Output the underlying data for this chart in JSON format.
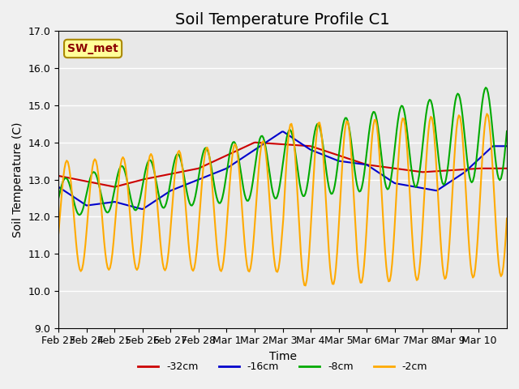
{
  "title": "Soil Temperature Profile C1",
  "xlabel": "Time",
  "ylabel": "Soil Temperature (C)",
  "ylim": [
    9.0,
    17.0
  ],
  "yticks": [
    9.0,
    10.0,
    11.0,
    12.0,
    13.0,
    14.0,
    15.0,
    16.0,
    17.0
  ],
  "xtick_labels": [
    "Feb 23",
    "Feb 24",
    "Feb 25",
    "Feb 26",
    "Feb 27",
    "Feb 28",
    "Mar 1",
    "Mar 2",
    "Mar 3",
    "Mar 4",
    "Mar 5",
    "Mar 6",
    "Mar 7",
    "Mar 8",
    "Mar 9",
    "Mar 10"
  ],
  "legend_labels": [
    "-32cm",
    "-16cm",
    "-8cm",
    "-2cm"
  ],
  "legend_colors": [
    "#cc0000",
    "#0000cc",
    "#00aa00",
    "#ffaa00"
  ],
  "annotation_text": "SW_met",
  "annotation_bg": "#ffff99",
  "annotation_border": "#aa8800",
  "background_color": "#e8e8e8",
  "grid_color": "#ffffff",
  "title_fontsize": 14,
  "axis_label_fontsize": 10,
  "tick_fontsize": 9
}
